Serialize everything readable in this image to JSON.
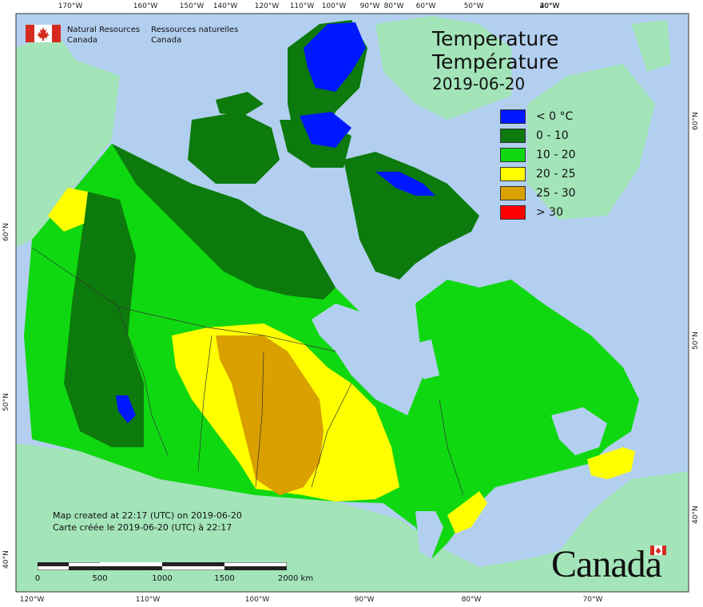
{
  "organization": {
    "en": "Natural Resources\nCanada",
    "fr": "Ressources naturelles\nCanada"
  },
  "title": {
    "en": "Temperature",
    "fr": "Température",
    "date": "2019-06-20"
  },
  "legend": [
    {
      "label": "< 0 °C",
      "color": "#0018ff"
    },
    {
      "label": "0 - 10",
      "color": "#0c7a0c"
    },
    {
      "label": "10 - 20",
      "color": "#10d810"
    },
    {
      "label": "20 - 25",
      "color": "#ffff00"
    },
    {
      "label": "25 - 30",
      "color": "#d9a000"
    },
    {
      "label": "> 30",
      "color": "#ff0000"
    }
  ],
  "note": {
    "en": "Map created at 22:17 (UTC) on 2019-06-20",
    "fr": "Carte créée le 2019-06-20 (UTC) à 22:17"
  },
  "scale": {
    "labels": [
      "0",
      "500",
      "1000",
      "1500",
      "2000 km"
    ]
  },
  "graticule": {
    "top": [
      "170°W",
      "160°W",
      "150°W",
      "140°W",
      "120°W",
      "110°W",
      "100°W",
      "90°W",
      "80°W",
      "60°W",
      "50°W",
      "40°W",
      "30°W",
      "20°W"
    ],
    "bottom": [
      "120°W",
      "110°W",
      "100°W",
      "90°W",
      "80°W",
      "70°W"
    ],
    "left": [
      "60°N",
      "50°N",
      "40°N"
    ],
    "right": [
      "60°N",
      "50°N",
      "40°N"
    ]
  },
  "wordmark": "Canada",
  "colors": {
    "ocean": "#b2cff0",
    "land": "#a3e4b9",
    "frame": "#333333"
  }
}
